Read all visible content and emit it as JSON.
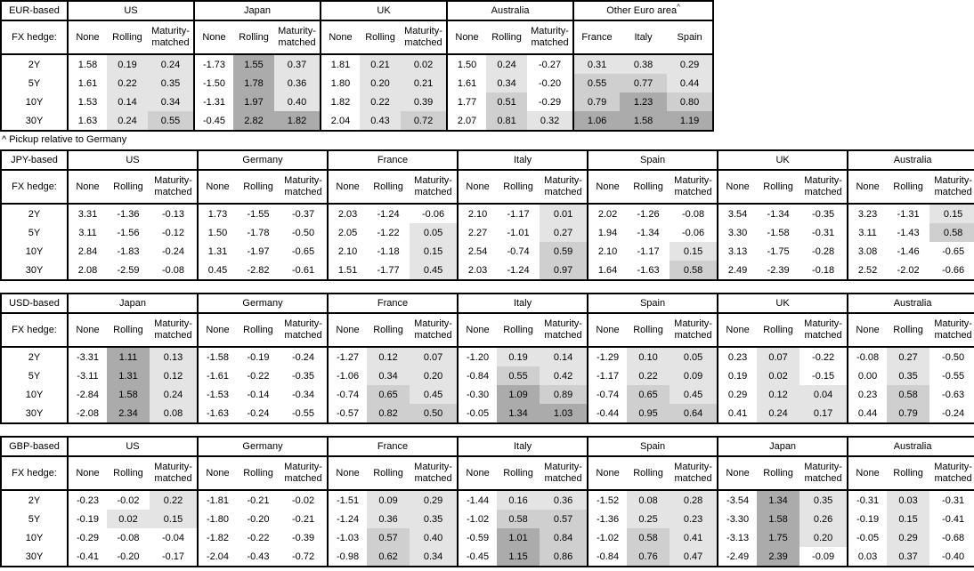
{
  "chart_data": {
    "type": "table",
    "description": "FX-hedged bond yield pickup heatmap tables by investor base currency",
    "fx_hedge_label": "FX hedge:",
    "fx_col_labels": [
      "None",
      "Rolling",
      "Maturity-matched"
    ],
    "row_labels": [
      "2Y",
      "5Y",
      "10Y",
      "30Y"
    ],
    "footnote": "^ Pickup relative to Germany",
    "heatmap_colors": {
      "low": "#e4e4e4",
      "mid": "#cfcfcf",
      "high": "#ababab"
    },
    "heatmap_legend": "shading by value: 0 to 0.5 light, 0.5 to 1.0 medium, 1.0+ dark; negatives and None column unshaded",
    "tables": [
      {
        "base": "EUR-based",
        "groups": [
          {
            "name": "US",
            "rows": [
              [
                "1.58",
                "0.19",
                "0.24"
              ],
              [
                "1.61",
                "0.22",
                "0.35"
              ],
              [
                "1.53",
                "0.14",
                "0.34"
              ],
              [
                "1.63",
                "0.24",
                "0.55"
              ]
            ]
          },
          {
            "name": "Japan",
            "rows": [
              [
                "-1.73",
                "1.55",
                "0.37"
              ],
              [
                "-1.50",
                "1.78",
                "0.36"
              ],
              [
                "-1.31",
                "1.97",
                "0.40"
              ],
              [
                "-0.45",
                "2.82",
                "1.82"
              ]
            ]
          },
          {
            "name": "UK",
            "rows": [
              [
                "1.81",
                "0.21",
                "0.02"
              ],
              [
                "1.80",
                "0.20",
                "0.21"
              ],
              [
                "1.82",
                "0.22",
                "0.39"
              ],
              [
                "2.04",
                "0.43",
                "0.72"
              ]
            ]
          },
          {
            "name": "Australia",
            "rows": [
              [
                "1.50",
                "0.24",
                "-0.27"
              ],
              [
                "1.61",
                "0.34",
                "-0.20"
              ],
              [
                "1.77",
                "0.51",
                "-0.29"
              ],
              [
                "2.07",
                "0.81",
                "0.32"
              ]
            ]
          },
          {
            "name": "Other Euro area",
            "sup": "^",
            "cols": [
              "France",
              "Italy",
              "Spain"
            ],
            "rows": [
              [
                "0.31",
                "0.38",
                "0.29"
              ],
              [
                "0.55",
                "0.77",
                "0.44"
              ],
              [
                "0.79",
                "1.23",
                "0.80"
              ],
              [
                "1.06",
                "1.58",
                "1.19"
              ]
            ]
          }
        ]
      },
      {
        "base": "JPY-based",
        "groups": [
          {
            "name": "US",
            "rows": [
              [
                "3.31",
                "-1.36",
                "-0.13"
              ],
              [
                "3.11",
                "-1.56",
                "-0.12"
              ],
              [
                "2.84",
                "-1.83",
                "-0.24"
              ],
              [
                "2.08",
                "-2.59",
                "-0.08"
              ]
            ]
          },
          {
            "name": "Germany",
            "rows": [
              [
                "1.73",
                "-1.55",
                "-0.37"
              ],
              [
                "1.50",
                "-1.78",
                "-0.50"
              ],
              [
                "1.31",
                "-1.97",
                "-0.65"
              ],
              [
                "0.45",
                "-2.82",
                "-0.61"
              ]
            ]
          },
          {
            "name": "France",
            "rows": [
              [
                "2.03",
                "-1.24",
                "-0.06"
              ],
              [
                "2.05",
                "-1.22",
                "0.05"
              ],
              [
                "2.10",
                "-1.18",
                "0.15"
              ],
              [
                "1.51",
                "-1.77",
                "0.45"
              ]
            ]
          },
          {
            "name": "Italy",
            "rows": [
              [
                "2.10",
                "-1.17",
                "0.01"
              ],
              [
                "2.27",
                "-1.01",
                "0.27"
              ],
              [
                "2.54",
                "-0.74",
                "0.59"
              ],
              [
                "2.03",
                "-1.24",
                "0.97"
              ]
            ]
          },
          {
            "name": "Spain",
            "rows": [
              [
                "2.02",
                "-1.26",
                "-0.08"
              ],
              [
                "1.94",
                "-1.34",
                "-0.06"
              ],
              [
                "2.10",
                "-1.17",
                "0.15"
              ],
              [
                "1.64",
                "-1.63",
                "0.58"
              ]
            ]
          },
          {
            "name": "UK",
            "rows": [
              [
                "3.54",
                "-1.34",
                "-0.35"
              ],
              [
                "3.30",
                "-1.58",
                "-0.31"
              ],
              [
                "3.13",
                "-1.75",
                "-0.28"
              ],
              [
                "2.49",
                "-2.39",
                "-0.18"
              ]
            ]
          },
          {
            "name": "Australia",
            "rows": [
              [
                "3.23",
                "-1.31",
                "0.15"
              ],
              [
                "3.11",
                "-1.43",
                "0.58"
              ],
              [
                "3.08",
                "-1.46",
                "-0.65"
              ],
              [
                "2.52",
                "-2.02",
                "-0.66"
              ]
            ]
          }
        ]
      },
      {
        "base": "USD-based",
        "groups": [
          {
            "name": "Japan",
            "rows": [
              [
                "-3.31",
                "1.11",
                "0.13"
              ],
              [
                "-3.11",
                "1.31",
                "0.12"
              ],
              [
                "-2.84",
                "1.58",
                "0.24"
              ],
              [
                "-2.08",
                "2.34",
                "0.08"
              ]
            ]
          },
          {
            "name": "Germany",
            "rows": [
              [
                "-1.58",
                "-0.19",
                "-0.24"
              ],
              [
                "-1.61",
                "-0.22",
                "-0.35"
              ],
              [
                "-1.53",
                "-0.14",
                "-0.34"
              ],
              [
                "-1.63",
                "-0.24",
                "-0.55"
              ]
            ]
          },
          {
            "name": "France",
            "rows": [
              [
                "-1.27",
                "0.12",
                "0.07"
              ],
              [
                "-1.06",
                "0.34",
                "0.20"
              ],
              [
                "-0.74",
                "0.65",
                "0.45"
              ],
              [
                "-0.57",
                "0.82",
                "0.50"
              ]
            ]
          },
          {
            "name": "Italy",
            "rows": [
              [
                "-1.20",
                "0.19",
                "0.14"
              ],
              [
                "-0.84",
                "0.55",
                "0.42"
              ],
              [
                "-0.30",
                "1.09",
                "0.89"
              ],
              [
                "-0.05",
                "1.34",
                "1.03"
              ]
            ]
          },
          {
            "name": "Spain",
            "rows": [
              [
                "-1.29",
                "0.10",
                "0.05"
              ],
              [
                "-1.17",
                "0.22",
                "0.09"
              ],
              [
                "-0.74",
                "0.65",
                "0.45"
              ],
              [
                "-0.44",
                "0.95",
                "0.64"
              ]
            ]
          },
          {
            "name": "UK",
            "rows": [
              [
                "0.23",
                "0.07",
                "-0.22"
              ],
              [
                "0.19",
                "0.02",
                "-0.15"
              ],
              [
                "0.29",
                "0.12",
                "0.04"
              ],
              [
                "0.41",
                "0.24",
                "0.17"
              ]
            ]
          },
          {
            "name": "Australia",
            "rows": [
              [
                "-0.08",
                "0.27",
                "-0.50"
              ],
              [
                "0.00",
                "0.35",
                "-0.55"
              ],
              [
                "0.23",
                "0.58",
                "-0.63"
              ],
              [
                "0.44",
                "0.79",
                "-0.24"
              ]
            ]
          }
        ]
      },
      {
        "base": "GBP-based",
        "groups": [
          {
            "name": "US",
            "rows": [
              [
                "-0.23",
                "-0.02",
                "0.22"
              ],
              [
                "-0.19",
                "0.02",
                "0.15"
              ],
              [
                "-0.29",
                "-0.08",
                "-0.04"
              ],
              [
                "-0.41",
                "-0.20",
                "-0.17"
              ]
            ]
          },
          {
            "name": "Germany",
            "rows": [
              [
                "-1.81",
                "-0.21",
                "-0.02"
              ],
              [
                "-1.80",
                "-0.20",
                "-0.21"
              ],
              [
                "-1.82",
                "-0.22",
                "-0.39"
              ],
              [
                "-2.04",
                "-0.43",
                "-0.72"
              ]
            ]
          },
          {
            "name": "France",
            "rows": [
              [
                "-1.51",
                "0.09",
                "0.29"
              ],
              [
                "-1.24",
                "0.36",
                "0.35"
              ],
              [
                "-1.03",
                "0.57",
                "0.40"
              ],
              [
                "-0.98",
                "0.62",
                "0.34"
              ]
            ]
          },
          {
            "name": "Italy",
            "rows": [
              [
                "-1.44",
                "0.16",
                "0.36"
              ],
              [
                "-1.02",
                "0.58",
                "0.57"
              ],
              [
                "-0.59",
                "1.01",
                "0.84"
              ],
              [
                "-0.45",
                "1.15",
                "0.86"
              ]
            ]
          },
          {
            "name": "Spain",
            "rows": [
              [
                "-1.52",
                "0.08",
                "0.28"
              ],
              [
                "-1.36",
                "0.25",
                "0.23"
              ],
              [
                "-1.02",
                "0.58",
                "0.41"
              ],
              [
                "-0.84",
                "0.76",
                "0.47"
              ]
            ]
          },
          {
            "name": "Japan",
            "rows": [
              [
                "-3.54",
                "1.34",
                "0.35"
              ],
              [
                "-3.30",
                "1.58",
                "0.26"
              ],
              [
                "-3.13",
                "1.75",
                "0.20"
              ],
              [
                "-2.49",
                "2.39",
                "-0.09"
              ]
            ]
          },
          {
            "name": "Australia",
            "rows": [
              [
                "-0.31",
                "0.03",
                "-0.31"
              ],
              [
                "-0.19",
                "0.15",
                "-0.41"
              ],
              [
                "-0.05",
                "0.29",
                "-0.68"
              ],
              [
                "0.03",
                "0.37",
                "-0.40"
              ]
            ]
          }
        ]
      }
    ]
  }
}
